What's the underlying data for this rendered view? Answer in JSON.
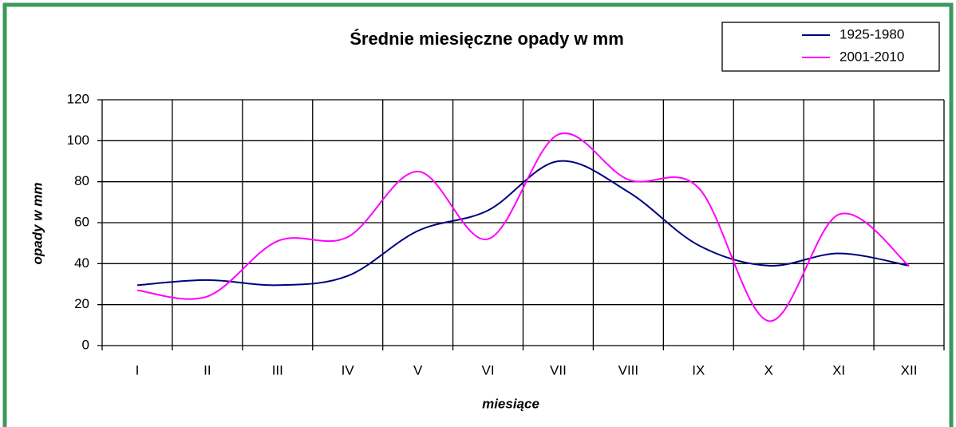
{
  "chart_data": {
    "type": "line",
    "title": "Średnie miesięczne opady w mm",
    "x_label": "miesiące",
    "y_label": "opady w mm",
    "categories": [
      "I",
      "II",
      "III",
      "IV",
      "V",
      "VI",
      "VII",
      "VIII",
      "IX",
      "X",
      "XI",
      "XII"
    ],
    "series": [
      {
        "name": "1925-1980",
        "color": "#000080",
        "values": [
          29.5,
          32,
          29.5,
          34,
          56,
          66,
          90,
          75,
          49,
          39,
          45,
          39
        ]
      },
      {
        "name": "2001-2010",
        "color": "#ff00ff",
        "values": [
          27,
          24,
          51,
          53,
          85,
          52,
          103,
          81,
          77,
          12,
          64,
          39
        ]
      }
    ],
    "ylim": [
      0,
      120
    ],
    "yticks": [
      0,
      20,
      40,
      60,
      80,
      100,
      120
    ],
    "grid": true,
    "legend": "top-right"
  }
}
